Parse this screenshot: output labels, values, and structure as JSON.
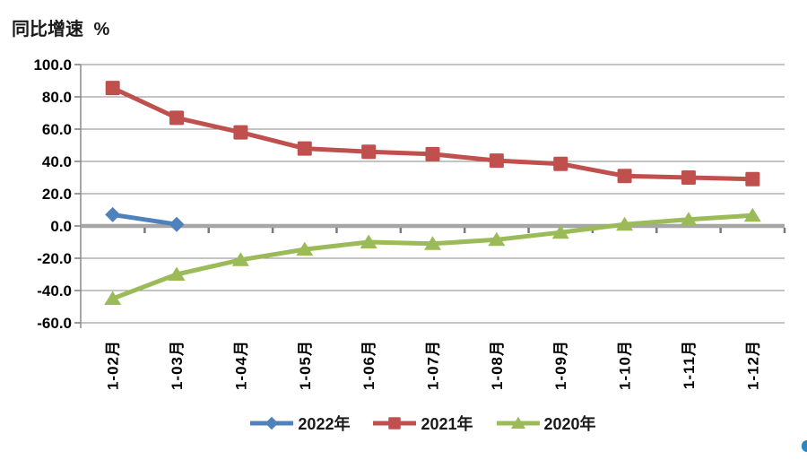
{
  "chart_data": {
    "type": "line",
    "title": "同比增速 %",
    "categories": [
      "1-02月",
      "1-03月",
      "1-04月",
      "1-05月",
      "1-06月",
      "1-07月",
      "1-08月",
      "1-09月",
      "1-10月",
      "1-11月",
      "1-12月"
    ],
    "series": [
      {
        "name": "2022年",
        "color": "#4F81BD",
        "marker": "diamond",
        "values": [
          7,
          1,
          null,
          null,
          null,
          null,
          null,
          null,
          null,
          null,
          null
        ]
      },
      {
        "name": "2021年",
        "color": "#C0504D",
        "marker": "square",
        "values": [
          85.5,
          67,
          58,
          48,
          46,
          44.5,
          40.5,
          38.5,
          31,
          30,
          29
        ]
      },
      {
        "name": "2020年",
        "color": "#9BBB59",
        "marker": "triangle",
        "values": [
          -45,
          -30,
          -21,
          -14.5,
          -10,
          -11,
          -8.5,
          -4,
          1,
          4,
          6.5
        ]
      }
    ],
    "y_axis": {
      "min": -60,
      "max": 100,
      "step": 20,
      "tick_labels": [
        "100.0",
        "80.0",
        "60.0",
        "40.0",
        "20.0",
        "0.0",
        "-20.0",
        "-40.0",
        "-60.0"
      ]
    },
    "grid": true,
    "legend_position": "bottom",
    "colors": {
      "gridline": "#8a8a8a",
      "zero_line": "#a6a6a6",
      "tick": "#7a7a7a",
      "text": "#000000"
    }
  }
}
